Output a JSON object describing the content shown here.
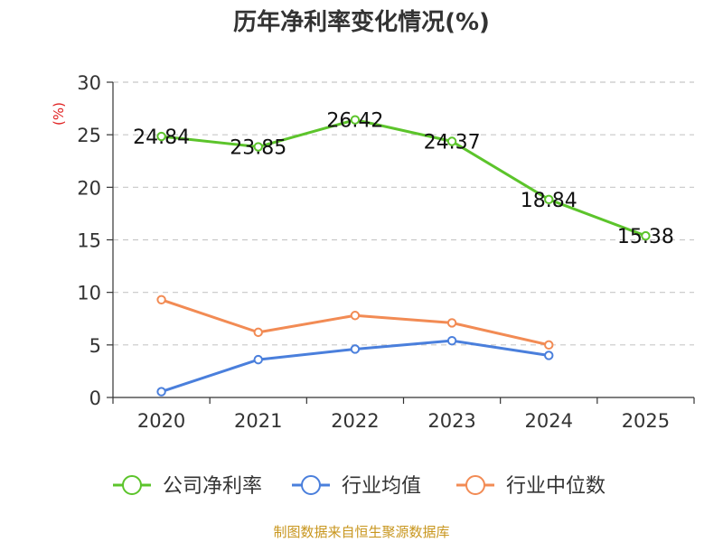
{
  "chart_data": {
    "type": "line",
    "title": "历年净利率变化情况(%)",
    "ylabel": "(%)",
    "xlabel": "",
    "categories": [
      "2020",
      "2021",
      "2022",
      "2023",
      "2024",
      "2025"
    ],
    "ylim": [
      0,
      30
    ],
    "yticks": [
      0,
      5,
      10,
      15,
      20,
      25,
      30
    ],
    "grid": true,
    "legend_position": "bottom",
    "series": [
      {
        "name": "公司净利率",
        "color": "#5cc42b",
        "values": [
          24.84,
          23.85,
          26.42,
          24.37,
          18.84,
          15.38
        ],
        "labels": [
          "24.84",
          "23.85",
          "26.42",
          "24.37",
          "18.84",
          "15.38"
        ]
      },
      {
        "name": "行业均值",
        "color": "#4a7fdc",
        "values": [
          0.55,
          3.6,
          4.6,
          5.4,
          4.0,
          null
        ]
      },
      {
        "name": "行业中位数",
        "color": "#f28b54",
        "values": [
          9.3,
          6.2,
          7.8,
          7.1,
          5.0,
          null
        ]
      }
    ],
    "source": "制图数据来自恒生聚源数据库"
  }
}
